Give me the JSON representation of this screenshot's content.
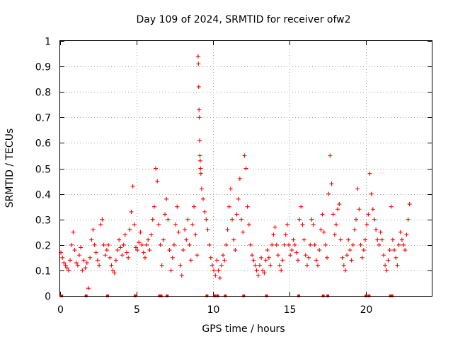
{
  "chart_data": {
    "type": "scatter",
    "title": "Day 109 of 2024, SRMTID for receiver ofw2",
    "xlabel": "GPS time / hours",
    "ylabel": "SRMTID / TECUs",
    "xlim": [
      0,
      24.3
    ],
    "ylim": [
      0,
      1
    ],
    "x_ticks": [
      {
        "value": 0,
        "label": "0"
      },
      {
        "value": 5,
        "label": "5"
      },
      {
        "value": 10,
        "label": "10"
      },
      {
        "value": 15,
        "label": "15"
      },
      {
        "value": 20,
        "label": "20"
      }
    ],
    "y_ticks": [
      {
        "value": 0,
        "label": "0"
      },
      {
        "value": 0.1,
        "label": "0.1"
      },
      {
        "value": 0.2,
        "label": "0.2"
      },
      {
        "value": 0.3,
        "label": "0.3"
      },
      {
        "value": 0.4,
        "label": "0.4"
      },
      {
        "value": 0.5,
        "label": "0.5"
      },
      {
        "value": 0.6,
        "label": "0.6"
      },
      {
        "value": 0.7,
        "label": "0.7"
      },
      {
        "value": 0.8,
        "label": "0.8"
      },
      {
        "value": 0.9,
        "label": "0.9"
      },
      {
        "value": 1,
        "label": "1"
      }
    ],
    "grid": true,
    "marker": "+",
    "series": [
      {
        "name": "SRMTID",
        "color": "#ff0000",
        "points": [
          [
            0.05,
            0.17
          ],
          [
            0.15,
            0.15
          ],
          [
            0.25,
            0.13
          ],
          [
            0.35,
            0.12
          ],
          [
            0.45,
            0.11
          ],
          [
            0.55,
            0.1
          ],
          [
            0.65,
            0.14
          ],
          [
            0.75,
            0.2
          ],
          [
            0.85,
            0.25
          ],
          [
            0.95,
            0.18
          ],
          [
            1.05,
            0.13
          ],
          [
            1.15,
            0.12
          ],
          [
            1.25,
            0.16
          ],
          [
            1.35,
            0.19
          ],
          [
            1.45,
            0.1
          ],
          [
            1.55,
            0.14
          ],
          [
            1.65,
            0.11
          ],
          [
            1.75,
            0.13
          ],
          [
            1.85,
            0.03
          ],
          [
            1.95,
            0.15
          ],
          [
            2.05,
            0.22
          ],
          [
            2.15,
            0.26
          ],
          [
            2.25,
            0.2
          ],
          [
            2.35,
            0.17
          ],
          [
            2.45,
            0.14
          ],
          [
            2.55,
            0.12
          ],
          [
            2.65,
            0.28
          ],
          [
            2.75,
            0.3
          ],
          [
            2.85,
            0.2
          ],
          [
            2.95,
            0.16
          ],
          [
            3.05,
            0.18
          ],
          [
            3.15,
            0.2
          ],
          [
            3.25,
            0.15
          ],
          [
            3.35,
            0.12
          ],
          [
            3.45,
            0.1
          ],
          [
            3.55,
            0.09
          ],
          [
            3.65,
            0.14
          ],
          [
            3.75,
            0.18
          ],
          [
            3.85,
            0.22
          ],
          [
            3.95,
            0.19
          ],
          [
            4.05,
            0.16
          ],
          [
            4.15,
            0.2
          ],
          [
            4.25,
            0.24
          ],
          [
            4.35,
            0.17
          ],
          [
            4.45,
            0.15
          ],
          [
            4.55,
            0.26
          ],
          [
            4.65,
            0.33
          ],
          [
            4.75,
            0.43
          ],
          [
            4.85,
            0.28
          ],
          [
            4.95,
            0.19
          ],
          [
            5.05,
            0.18
          ],
          [
            5.15,
            0.21
          ],
          [
            5.25,
            0.25
          ],
          [
            5.35,
            0.2
          ],
          [
            5.45,
            0.17
          ],
          [
            5.55,
            0.15
          ],
          [
            5.65,
            0.2
          ],
          [
            5.75,
            0.22
          ],
          [
            5.85,
            0.18
          ],
          [
            5.95,
            0.24
          ],
          [
            6.05,
            0.3
          ],
          [
            6.15,
            0.35
          ],
          [
            6.25,
            0.5
          ],
          [
            6.35,
            0.45
          ],
          [
            6.45,
            0.28
          ],
          [
            6.55,
            0.2
          ],
          [
            6.65,
            0.12
          ],
          [
            6.75,
            0.22
          ],
          [
            6.85,
            0.32
          ],
          [
            6.95,
            0.38
          ],
          [
            7.05,
            0.3
          ],
          [
            7.15,
            0.18
          ],
          [
            7.25,
            0.1
          ],
          [
            7.35,
            0.15
          ],
          [
            7.45,
            0.2
          ],
          [
            7.55,
            0.28
          ],
          [
            7.65,
            0.35
          ],
          [
            7.75,
            0.25
          ],
          [
            7.85,
            0.12
          ],
          [
            7.95,
            0.08
          ],
          [
            8.05,
            0.18
          ],
          [
            8.15,
            0.26
          ],
          [
            8.25,
            0.22
          ],
          [
            8.35,
            0.3
          ],
          [
            8.45,
            0.2
          ],
          [
            8.55,
            0.14
          ],
          [
            8.65,
            0.28
          ],
          [
            8.75,
            0.35
          ],
          [
            8.85,
            0.24
          ],
          [
            8.95,
            0.16
          ],
          [
            9.02,
            0.94
          ],
          [
            9.04,
            0.91
          ],
          [
            9.06,
            0.82
          ],
          [
            9.08,
            0.73
          ],
          [
            9.1,
            0.7
          ],
          [
            9.12,
            0.61
          ],
          [
            9.14,
            0.55
          ],
          [
            9.16,
            0.53
          ],
          [
            9.18,
            0.5
          ],
          [
            9.2,
            0.48
          ],
          [
            9.25,
            0.42
          ],
          [
            9.35,
            0.38
          ],
          [
            9.45,
            0.33
          ],
          [
            9.55,
            0.3
          ],
          [
            9.65,
            0.26
          ],
          [
            9.75,
            0.2
          ],
          [
            9.85,
            0.15
          ],
          [
            9.95,
            0.12
          ],
          [
            10.05,
            0.1
          ],
          [
            10.15,
            0.08
          ],
          [
            10.25,
            0.14
          ],
          [
            10.35,
            0.1
          ],
          [
            10.45,
            0.07
          ],
          [
            10.55,
            0.12
          ],
          [
            10.65,
            0.16
          ],
          [
            10.75,
            0.14
          ],
          [
            10.85,
            0.2
          ],
          [
            10.95,
            0.26
          ],
          [
            11.05,
            0.35
          ],
          [
            11.15,
            0.42
          ],
          [
            11.25,
            0.3
          ],
          [
            11.35,
            0.22
          ],
          [
            11.45,
            0.18
          ],
          [
            11.55,
            0.32
          ],
          [
            11.65,
            0.38
          ],
          [
            11.75,
            0.46
          ],
          [
            11.85,
            0.3
          ],
          [
            11.95,
            0.25
          ],
          [
            12.05,
            0.55
          ],
          [
            12.15,
            0.5
          ],
          [
            12.25,
            0.35
          ],
          [
            12.35,
            0.28
          ],
          [
            12.45,
            0.2
          ],
          [
            12.55,
            0.16
          ],
          [
            12.65,
            0.14
          ],
          [
            12.75,
            0.12
          ],
          [
            12.85,
            0.1
          ],
          [
            12.95,
            0.08
          ],
          [
            13.05,
            0.12
          ],
          [
            13.15,
            0.15
          ],
          [
            13.25,
            0.1
          ],
          [
            13.35,
            0.09
          ],
          [
            13.45,
            0.14
          ],
          [
            13.55,
            0.18
          ],
          [
            13.65,
            0.15
          ],
          [
            13.75,
            0.12
          ],
          [
            13.85,
            0.2
          ],
          [
            13.95,
            0.24
          ],
          [
            14.05,
            0.27
          ],
          [
            14.15,
            0.2
          ],
          [
            14.25,
            0.16
          ],
          [
            14.35,
            0.12
          ],
          [
            14.45,
            0.1
          ],
          [
            14.55,
            0.14
          ],
          [
            14.65,
            0.2
          ],
          [
            14.75,
            0.24
          ],
          [
            14.85,
            0.28
          ],
          [
            14.95,
            0.2
          ],
          [
            15.05,
            0.16
          ],
          [
            15.15,
            0.18
          ],
          [
            15.25,
            0.22
          ],
          [
            15.35,
            0.2
          ],
          [
            15.45,
            0.17
          ],
          [
            15.55,
            0.14
          ],
          [
            15.65,
            0.3
          ],
          [
            15.75,
            0.35
          ],
          [
            15.85,
            0.28
          ],
          [
            15.95,
            0.22
          ],
          [
            16.05,
            0.16
          ],
          [
            16.15,
            0.12
          ],
          [
            16.25,
            0.15
          ],
          [
            16.35,
            0.2
          ],
          [
            16.45,
            0.3
          ],
          [
            16.55,
            0.28
          ],
          [
            16.65,
            0.2
          ],
          [
            16.75,
            0.14
          ],
          [
            16.85,
            0.12
          ],
          [
            16.95,
            0.18
          ],
          [
            17.05,
            0.26
          ],
          [
            17.15,
            0.32
          ],
          [
            17.25,
            0.25
          ],
          [
            17.35,
            0.2
          ],
          [
            17.45,
            0.15
          ],
          [
            17.55,
            0.4
          ],
          [
            17.65,
            0.55
          ],
          [
            17.75,
            0.44
          ],
          [
            17.85,
            0.32
          ],
          [
            17.95,
            0.24
          ],
          [
            18.05,
            0.28
          ],
          [
            18.15,
            0.34
          ],
          [
            18.25,
            0.36
          ],
          [
            18.35,
            0.22
          ],
          [
            18.45,
            0.15
          ],
          [
            18.55,
            0.12
          ],
          [
            18.65,
            0.1
          ],
          [
            18.75,
            0.16
          ],
          [
            18.85,
            0.22
          ],
          [
            18.95,
            0.18
          ],
          [
            19.05,
            0.14
          ],
          [
            19.15,
            0.2
          ],
          [
            19.25,
            0.26
          ],
          [
            19.35,
            0.3
          ],
          [
            19.45,
            0.42
          ],
          [
            19.55,
            0.34
          ],
          [
            19.65,
            0.2
          ],
          [
            19.75,
            0.15
          ],
          [
            19.85,
            0.18
          ],
          [
            19.95,
            0.22
          ],
          [
            20.05,
            0.28
          ],
          [
            20.15,
            0.32
          ],
          [
            20.25,
            0.48
          ],
          [
            20.35,
            0.4
          ],
          [
            20.45,
            0.34
          ],
          [
            20.55,
            0.3
          ],
          [
            20.65,
            0.26
          ],
          [
            20.75,
            0.22
          ],
          [
            20.85,
            0.2
          ],
          [
            20.95,
            0.25
          ],
          [
            21.05,
            0.22
          ],
          [
            21.15,
            0.16
          ],
          [
            21.25,
            0.12
          ],
          [
            21.35,
            0.1
          ],
          [
            21.45,
            0.14
          ],
          [
            21.55,
            0.18
          ],
          [
            21.65,
            0.35
          ],
          [
            21.75,
            0.22
          ],
          [
            21.85,
            0.18
          ],
          [
            21.95,
            0.15
          ],
          [
            22.05,
            0.12
          ],
          [
            22.15,
            0.2
          ],
          [
            22.25,
            0.25
          ],
          [
            22.35,
            0.22
          ],
          [
            22.45,
            0.2
          ],
          [
            22.55,
            0.18
          ],
          [
            22.65,
            0.24
          ],
          [
            22.75,
            0.3
          ],
          [
            22.85,
            0.36
          ]
        ]
      }
    ],
    "baseline_markers": [
      0.1,
      1.7,
      3.1,
      4.9,
      6.5,
      6.6,
      7.0,
      9.6,
      10.1,
      10.3,
      10.8,
      12.0,
      13.5,
      15.6,
      17.2,
      17.5,
      20.0,
      20.2,
      21.6,
      21.7
    ]
  }
}
